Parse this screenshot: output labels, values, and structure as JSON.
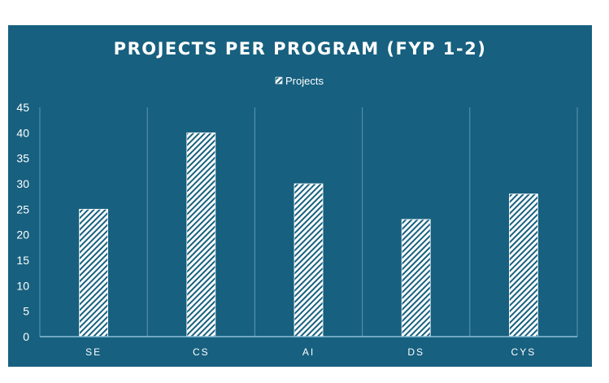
{
  "chart_data": {
    "type": "bar",
    "title": "PROJECTS PER PROGRAM (FYP 1-2)",
    "categories": [
      "SE",
      "CS",
      "AI",
      "DS",
      "CYS"
    ],
    "series": [
      {
        "name": "Projects",
        "values": [
          25,
          40,
          30,
          23,
          28
        ]
      }
    ],
    "ylim": [
      0,
      45
    ],
    "yticks": [
      "0",
      "5",
      "10",
      "15",
      "20",
      "25",
      "30",
      "35",
      "40",
      "45"
    ],
    "xlabel": "",
    "ylabel": "",
    "legend_position": "top",
    "grid": "vertical category separators",
    "colors": {
      "background": "#17607f",
      "bar_pattern": "white diagonal hatch",
      "text": "#ffffff"
    }
  }
}
